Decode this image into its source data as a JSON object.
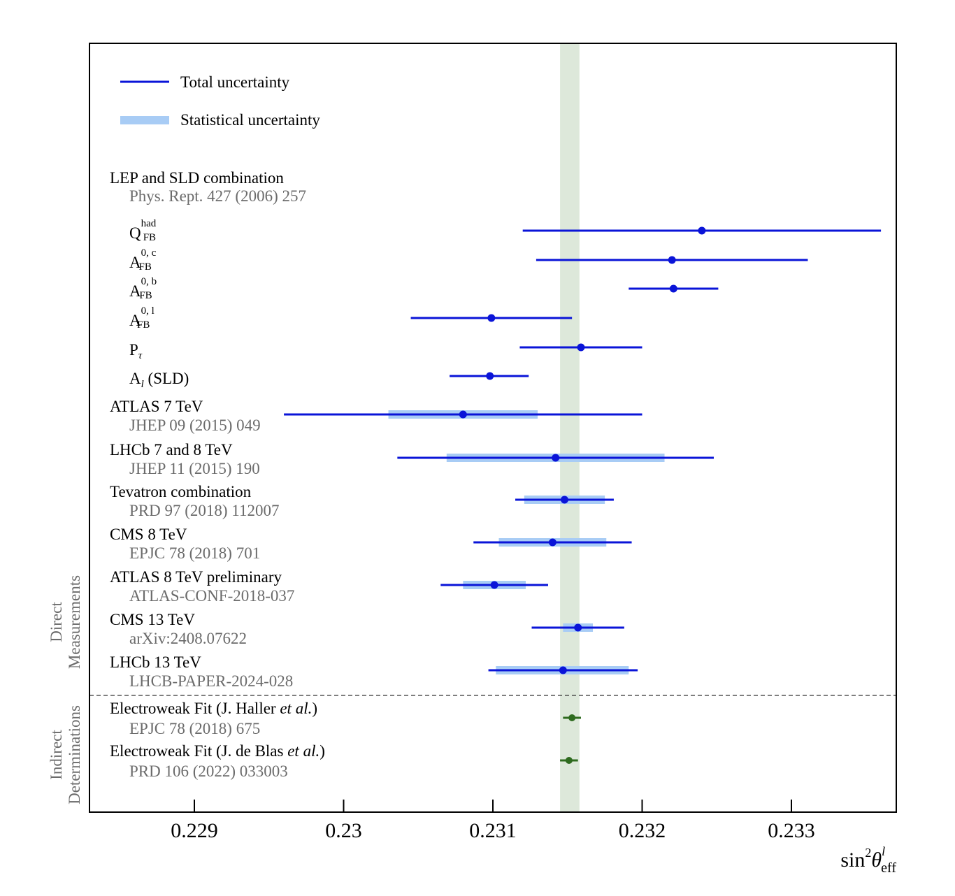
{
  "chart_data": {
    "type": "forest",
    "xlabel": "sin²θ_eff^l",
    "xlabel_parts": {
      "base": "sin",
      "pow": "2",
      "theta": "θ",
      "sup": "l",
      "sub": "eff"
    },
    "xlim": [
      0.2283,
      0.2337
    ],
    "xticks": [
      0.229,
      0.23,
      0.231,
      0.232,
      0.233
    ],
    "xtick_labels": [
      "0.229",
      "0.23",
      "0.231",
      "0.232",
      "0.233"
    ],
    "band": {
      "low": 0.23145,
      "high": 0.23158,
      "color": "#dde8da"
    },
    "legend": {
      "total": "Total uncertainty",
      "stat": "Statistical uncertainty"
    },
    "colors": {
      "total": "#0a14d8",
      "stat": "#a8ccf5",
      "indirect": "#2e6b1f",
      "ref_text": "#6b6b6b"
    },
    "group_header": {
      "title": "LEP and SLD combination",
      "ref": "Phys. Rept. 427 (2006) 257"
    },
    "lep_items": [
      {
        "base": "Q",
        "sup": "had",
        "sub": "FB",
        "value": 0.2324,
        "lo": 0.2312,
        "hi": 0.2336
      },
      {
        "base": "A",
        "sup": "0, c",
        "sub": "FB",
        "value": 0.2322,
        "lo": 0.23129,
        "hi": 0.23311
      },
      {
        "base": "A",
        "sup": "0, b",
        "sub": "FB",
        "value": 0.23221,
        "lo": 0.23191,
        "hi": 0.23251
      },
      {
        "base": "A",
        "sup": "0, l",
        "sub": "FB",
        "value": 0.23099,
        "lo": 0.23045,
        "hi": 0.23153
      },
      {
        "base": "P",
        "sup": "",
        "sub": "τ",
        "value": 0.23159,
        "lo": 0.23118,
        "hi": 0.232
      },
      {
        "base": "A",
        "sup": "",
        "sub": "l",
        "suffix": " (SLD)",
        "value": 0.23098,
        "lo": 0.23071,
        "hi": 0.23124
      }
    ],
    "measurements": [
      {
        "name": "ATLAS 7 TeV",
        "ref": "JHEP 09 (2015) 049",
        "value": 0.2308,
        "lo": 0.2296,
        "hi": 0.232,
        "stat_lo": 0.2303,
        "stat_hi": 0.2313
      },
      {
        "name": "LHCb 7 and 8 TeV",
        "ref": "JHEP 11 (2015) 190",
        "value": 0.23142,
        "lo": 0.23036,
        "hi": 0.23248,
        "stat_lo": 0.23069,
        "stat_hi": 0.23215
      },
      {
        "name": "Tevatron combination",
        "ref": "PRD 97 (2018) 112007",
        "value": 0.23148,
        "lo": 0.23115,
        "hi": 0.23181,
        "stat_lo": 0.23121,
        "stat_hi": 0.23175
      },
      {
        "name": "CMS 8 TeV",
        "ref": "EPJC 78 (2018) 701",
        "value": 0.2314,
        "lo": 0.23087,
        "hi": 0.23193,
        "stat_lo": 0.23104,
        "stat_hi": 0.23176
      },
      {
        "name": "ATLAS 8 TeV preliminary",
        "ref": "ATLAS-CONF-2018-037",
        "value": 0.23101,
        "lo": 0.23065,
        "hi": 0.23137,
        "stat_lo": 0.2308,
        "stat_hi": 0.23122
      },
      {
        "name": "CMS 13 TeV",
        "ref": "arXiv:2408.07622",
        "value": 0.23157,
        "lo": 0.23126,
        "hi": 0.23188,
        "stat_lo": 0.23147,
        "stat_hi": 0.23167
      },
      {
        "name": "LHCb 13 TeV",
        "ref": "LHCB-PAPER-2024-028",
        "value": 0.23147,
        "lo": 0.23097,
        "hi": 0.23197,
        "stat_lo": 0.23102,
        "stat_hi": 0.23191
      }
    ],
    "indirect": [
      {
        "name": "Electroweak Fit (J. Haller ",
        "etal": "et al.",
        "close": ")",
        "ref": "EPJC 78 (2018) 675",
        "value": 0.23153,
        "lo": 0.23147,
        "hi": 0.23159
      },
      {
        "name": "Electroweak Fit (J. de Blas ",
        "etal": "et al.",
        "close": ")",
        "ref": "PRD 106 (2022) 033003",
        "value": 0.23151,
        "lo": 0.23145,
        "hi": 0.23157
      }
    ],
    "section_labels": {
      "direct": [
        "Direct",
        "Measurements"
      ],
      "indirect": [
        "Indirect",
        "Determinations"
      ]
    }
  }
}
